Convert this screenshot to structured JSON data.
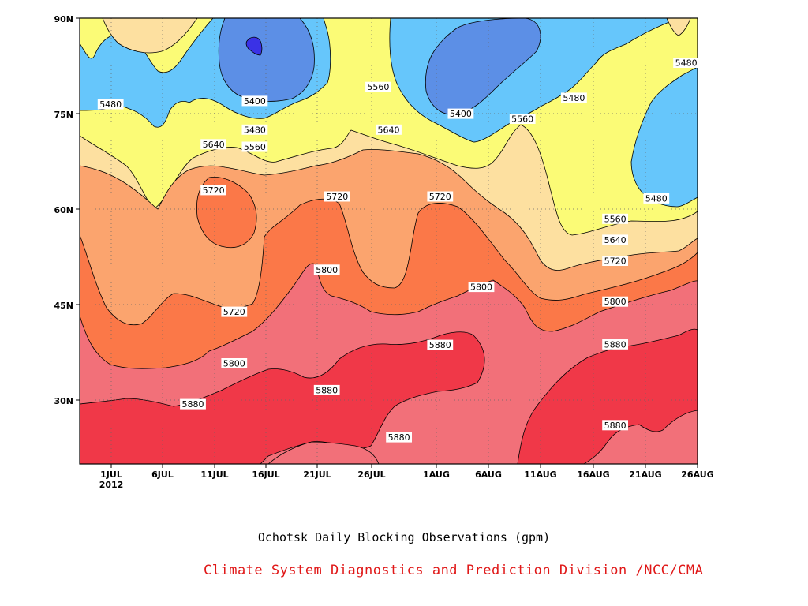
{
  "chart_data": {
    "type": "heatmap",
    "subtype": "filled-contour (time-latitude Hovmoller)",
    "title": "Ochotsk Daily Blocking Observations (gpm)",
    "subtitle": "Climate System Diagnostics and Prediction Division /NCC/CMA",
    "x_axis": {
      "ticks": [
        "1JUL",
        "6JUL",
        "11JUL",
        "16JUL",
        "21JUL",
        "26JUL",
        "1AUG",
        "6AUG",
        "11AUG",
        "16AUG",
        "21AUG",
        "26AUG"
      ],
      "year_label": "2012",
      "range": [
        "2012-06-27",
        "2012-08-26"
      ]
    },
    "y_axis": {
      "ticks": [
        "30N",
        "45N",
        "60N",
        "75N",
        "90N"
      ],
      "range": [
        20,
        90
      ]
    },
    "grid": true,
    "contour_levels": [
      5400,
      5480,
      5560,
      5640,
      5720,
      5800,
      5880
    ],
    "fill_colors": {
      "below_5400": "#4f6bd8",
      "5320_5400_core": "#3a32e6",
      "5400_5480": "#5c8fe6",
      "5480_5560": "#66c6fb",
      "5560_5640": "#fbfb76",
      "5640_5720": "#fde0a0",
      "5720_5800": "#fba46e",
      "5800_5880": "#fb7848",
      "5880_5960": "#f27079",
      "above_5880": "#f03848"
    },
    "contour_labels": [
      {
        "value": "5480",
        "date": "2012-06-30",
        "lat": 76.5
      },
      {
        "value": "5400",
        "date": "2012-07-14",
        "lat": 77
      },
      {
        "value": "5480",
        "date": "2012-07-14",
        "lat": 72.5
      },
      {
        "value": "5560",
        "date": "2012-07-14",
        "lat": 69.8
      },
      {
        "value": "5640",
        "date": "2012-07-10",
        "lat": 70.2
      },
      {
        "value": "5720",
        "date": "2012-07-10",
        "lat": 63
      },
      {
        "value": "5560",
        "date": "2012-07-26",
        "lat": 79.2
      },
      {
        "value": "5640",
        "date": "2012-07-27",
        "lat": 72.5
      },
      {
        "value": "5720",
        "date": "2012-07-22",
        "lat": 62
      },
      {
        "value": "5800",
        "date": "2012-07-21",
        "lat": 50.5
      },
      {
        "value": "5720",
        "date": "2012-07-12",
        "lat": 43.9
      },
      {
        "value": "5800",
        "date": "2012-07-12",
        "lat": 35.8
      },
      {
        "value": "5880",
        "date": "2012-07-21",
        "lat": 31.6
      },
      {
        "value": "5880",
        "date": "2012-07-08",
        "lat": 29.4
      },
      {
        "value": "5880",
        "date": "2012-07-28",
        "lat": 24.2
      },
      {
        "value": "5720",
        "date": "2012-08-01",
        "lat": 62
      },
      {
        "value": "5880",
        "date": "2012-08-01",
        "lat": 38.7
      },
      {
        "value": "5800",
        "date": "2012-08-05",
        "lat": 47.8
      },
      {
        "value": "5400",
        "date": "2012-08-03",
        "lat": 75
      },
      {
        "value": "5560",
        "date": "2012-08-09",
        "lat": 74.2
      },
      {
        "value": "5480",
        "date": "2012-08-14",
        "lat": 77.5
      },
      {
        "value": "5480",
        "date": "2012-08-26",
        "lat": 83
      },
      {
        "value": "5480",
        "date": "2012-08-22",
        "lat": 61.7
      },
      {
        "value": "5560",
        "date": "2012-08-18",
        "lat": 58.5
      },
      {
        "value": "5640",
        "date": "2012-08-18",
        "lat": 55.2
      },
      {
        "value": "5720",
        "date": "2012-08-18",
        "lat": 51.9
      },
      {
        "value": "5800",
        "date": "2012-08-18",
        "lat": 45.5
      },
      {
        "value": "5880",
        "date": "2012-08-18",
        "lat": 38.8
      },
      {
        "value": "5880",
        "date": "2012-08-18",
        "lat": 26.1
      }
    ]
  }
}
